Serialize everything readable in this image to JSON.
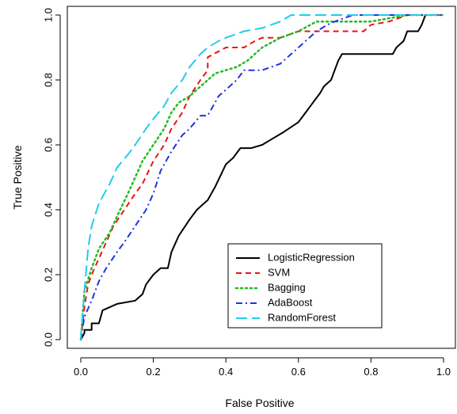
{
  "chart_data": {
    "type": "line",
    "title": "",
    "xlabel": "False Positive",
    "ylabel": "True Positive",
    "xlim": [
      0,
      1
    ],
    "ylim": [
      0,
      1
    ],
    "xticks": [
      "0.0",
      "0.2",
      "0.4",
      "0.6",
      "0.8",
      "1.0"
    ],
    "yticks": [
      "0.0",
      "0.2",
      "0.4",
      "0.6",
      "0.8",
      "1.0"
    ],
    "grid": false,
    "legend_position": "bottom-right",
    "series": [
      {
        "name": "LogisticRegression",
        "color": "#000000",
        "dash": "solid",
        "x": [
          0,
          0.01,
          0.01,
          0.03,
          0.03,
          0.05,
          0.06,
          0.1,
          0.15,
          0.17,
          0.18,
          0.2,
          0.22,
          0.24,
          0.25,
          0.27,
          0.3,
          0.32,
          0.35,
          0.37,
          0.4,
          0.42,
          0.44,
          0.47,
          0.5,
          0.53,
          0.56,
          0.6,
          0.62,
          0.64,
          0.66,
          0.67,
          0.69,
          0.7,
          0.71,
          0.72,
          0.8,
          0.86,
          0.87,
          0.89,
          0.9,
          0.93,
          0.94,
          0.95,
          1
        ],
        "y": [
          0,
          0.02,
          0.03,
          0.03,
          0.05,
          0.05,
          0.09,
          0.11,
          0.12,
          0.14,
          0.17,
          0.2,
          0.22,
          0.22,
          0.27,
          0.32,
          0.37,
          0.4,
          0.43,
          0.47,
          0.54,
          0.56,
          0.59,
          0.59,
          0.6,
          0.62,
          0.64,
          0.67,
          0.7,
          0.73,
          0.76,
          0.78,
          0.8,
          0.83,
          0.86,
          0.88,
          0.88,
          0.88,
          0.9,
          0.92,
          0.95,
          0.95,
          0.97,
          1.0,
          1.0
        ]
      },
      {
        "name": "SVM",
        "color": "#ee1111",
        "dash": "dashed",
        "x": [
          0,
          0.01,
          0.02,
          0.03,
          0.05,
          0.07,
          0.09,
          0.12,
          0.15,
          0.17,
          0.2,
          0.23,
          0.25,
          0.28,
          0.3,
          0.33,
          0.35,
          0.35,
          0.4,
          0.45,
          0.48,
          0.5,
          0.55,
          0.6,
          0.7,
          0.78,
          0.8,
          0.85,
          0.9,
          1
        ],
        "y": [
          0,
          0.1,
          0.17,
          0.2,
          0.25,
          0.3,
          0.35,
          0.4,
          0.45,
          0.48,
          0.55,
          0.6,
          0.65,
          0.7,
          0.75,
          0.8,
          0.83,
          0.87,
          0.9,
          0.9,
          0.92,
          0.93,
          0.93,
          0.95,
          0.95,
          0.95,
          0.97,
          0.98,
          1.0,
          1.0
        ]
      },
      {
        "name": "Bagging",
        "color": "#22bb22",
        "dash": "dotted",
        "x": [
          0,
          0.01,
          0.03,
          0.05,
          0.08,
          0.1,
          0.13,
          0.15,
          0.17,
          0.2,
          0.23,
          0.25,
          0.27,
          0.3,
          0.33,
          0.35,
          0.37,
          0.4,
          0.43,
          0.46,
          0.5,
          0.55,
          0.6,
          0.65,
          0.7,
          0.8,
          0.9,
          1
        ],
        "y": [
          0,
          0.15,
          0.22,
          0.28,
          0.33,
          0.38,
          0.45,
          0.5,
          0.55,
          0.6,
          0.65,
          0.7,
          0.73,
          0.75,
          0.78,
          0.8,
          0.82,
          0.83,
          0.84,
          0.86,
          0.9,
          0.93,
          0.95,
          0.98,
          0.98,
          0.98,
          1.0,
          1.0
        ]
      },
      {
        "name": "AdaBoost",
        "color": "#2233dd",
        "dash": "dotdash",
        "x": [
          0,
          0.01,
          0.03,
          0.05,
          0.07,
          0.1,
          0.12,
          0.15,
          0.18,
          0.2,
          0.22,
          0.25,
          0.28,
          0.3,
          0.33,
          0.35,
          0.38,
          0.4,
          0.43,
          0.45,
          0.5,
          0.55,
          0.6,
          0.63,
          0.65,
          0.68,
          0.7,
          0.75,
          0.85,
          0.9,
          1
        ],
        "y": [
          0,
          0.07,
          0.12,
          0.18,
          0.22,
          0.27,
          0.3,
          0.35,
          0.4,
          0.45,
          0.52,
          0.58,
          0.63,
          0.65,
          0.69,
          0.69,
          0.75,
          0.77,
          0.8,
          0.83,
          0.83,
          0.85,
          0.9,
          0.93,
          0.95,
          0.97,
          0.98,
          1.0,
          1.0,
          1.0,
          1.0
        ]
      },
      {
        "name": "RandomForest",
        "color": "#22ccee",
        "dash": "longdash",
        "x": [
          0,
          0.01,
          0.02,
          0.03,
          0.05,
          0.08,
          0.1,
          0.13,
          0.15,
          0.18,
          0.2,
          0.23,
          0.25,
          0.28,
          0.3,
          0.33,
          0.35,
          0.38,
          0.4,
          0.45,
          0.5,
          0.55,
          0.58,
          0.6,
          0.7,
          0.8,
          1
        ],
        "y": [
          0,
          0.15,
          0.28,
          0.35,
          0.42,
          0.48,
          0.53,
          0.57,
          0.6,
          0.65,
          0.68,
          0.72,
          0.76,
          0.8,
          0.84,
          0.88,
          0.9,
          0.92,
          0.93,
          0.95,
          0.96,
          0.98,
          1.0,
          1.0,
          1.0,
          1.0,
          1.0
        ]
      }
    ]
  }
}
